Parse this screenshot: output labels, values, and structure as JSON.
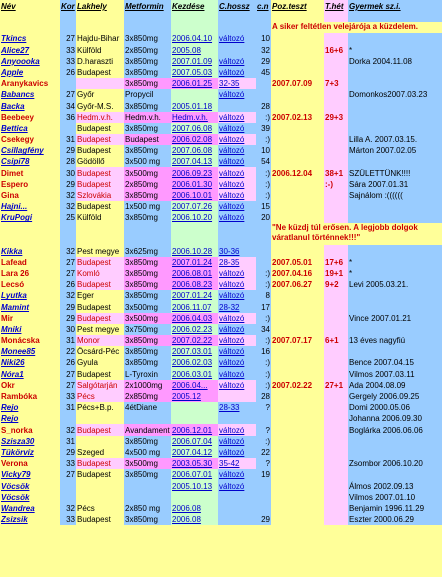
{
  "headers": [
    "Név",
    "Kor",
    "Lakhely",
    "Metformin",
    "Kezdése",
    "C.hossz",
    "c.n",
    "Poz.teszt",
    "T.hét",
    "Gyermek sz.i."
  ],
  "rows": [
    [
      "",
      "",
      "",
      "",
      "",
      "",
      "",
      "",
      "",
      ""
    ],
    [
      "Tkincs",
      "27",
      "Hajdu-Bihar",
      "3x850mg",
      "2006.04.10",
      "változó",
      "10",
      "",
      "",
      ""
    ],
    [
      "Alice27",
      "33",
      "Külföld",
      "2x850mg",
      "2005.08",
      "",
      "32",
      "",
      "16+6",
      "*"
    ],
    [
      "Anyoooka",
      "33",
      "D.haraszti",
      "3x850mg",
      "2007.01.09",
      "változó",
      "29",
      "",
      "",
      "Dorka 2004.11.08"
    ],
    [
      "Apple",
      "26",
      "Budapest",
      "3x850mg",
      "2007.05.03",
      "változó",
      "45",
      "",
      "",
      ""
    ],
    [
      "Aranykavics",
      "",
      "",
      "3x850mg",
      "2006.01.25",
      "32-35",
      "",
      "2007.07.09",
      "7+3",
      ""
    ],
    [
      "Babancs",
      "27",
      "Győr",
      "Propycil",
      "",
      "változó",
      "",
      "",
      "",
      "Domonkos2007.03.23"
    ],
    [
      "Backa",
      "34",
      "Győr-M.S.",
      "3x850mg",
      "2005.01.18",
      "",
      "28",
      "",
      "",
      ""
    ],
    [
      "Beebeey",
      "36",
      "Hedm.v.h.",
      "Hedm.v.h.",
      "Hedm.v.h.",
      "változó",
      ":)",
      "2007.02.13",
      "29+3",
      ""
    ],
    [
      "Bettica",
      "",
      "Budapest",
      "3x850mg",
      "2007.06.08",
      "változó",
      "39",
      "",
      "",
      ""
    ],
    [
      "Csekegy",
      "31",
      "Budapest",
      "Budapest",
      "2006.02.08",
      "változó",
      ":)",
      "",
      "",
      "Lilla A. 2007.03.15."
    ],
    [
      "Csillagfény",
      "29",
      "Budapest",
      "3x850mg",
      "2007.06.08",
      "változó",
      "10",
      "",
      "",
      "Márton 2007.02.05"
    ],
    [
      "Csipi78",
      "28",
      "Gödöllő",
      "3x500 mg",
      "2007.04.13",
      "változó",
      "54",
      "",
      "",
      ""
    ],
    [
      "Dimet",
      "30",
      "Budapest",
      "3x500mg",
      "2006.09.23",
      "változó",
      ":)",
      "2006.12.04",
      "38+1",
      "SZÜLETTÜNK!!!!"
    ],
    [
      "Espero",
      "29",
      "Budapest",
      "2x850mg",
      "2006.01.30",
      "változó",
      ":)",
      "",
      ":-)",
      "Sára 2007.01.31"
    ],
    [
      "Gina",
      "32",
      "Szlovákia",
      "3x850mg",
      "2006.10.01",
      "változó",
      ":)",
      "",
      "",
      "Sajnálom :(((((("
    ],
    [
      "Hajni...",
      "32",
      "Budapest",
      "1x500 mg",
      "2007.07.26",
      "változó",
      "15",
      "",
      "",
      ""
    ],
    [
      "KruPogi",
      "25",
      "Külföld",
      "3x850mg",
      "2006.10.20",
      "változó",
      "20",
      "",
      "",
      ""
    ]
  ],
  "rows2": [
    [
      "Kikka",
      "32",
      "Pest megye",
      "3x625mg",
      "2006.10.28",
      "30-36",
      "",
      "",
      "",
      ""
    ],
    [
      "Lafead",
      "27",
      "Budapest",
      "3x850mg",
      "2007.01.24",
      "28-35",
      "",
      "2007.05.01",
      "17+6",
      "*"
    ],
    [
      "Lara 26",
      "27",
      "Komló",
      "3x850mg",
      "2006.08.01",
      "változó",
      ":)",
      "2007.04.16",
      "19+1",
      "*"
    ],
    [
      "Lecsó",
      "26",
      "Budapest",
      "3x850mg",
      "2006.08.23",
      "változó",
      ":)",
      "2007.06.27",
      "9+2",
      "Levi 2005.03.21."
    ],
    [
      "Lyutka",
      "32",
      "Eger",
      "3x850mg",
      "2007.01.24",
      "változó",
      "8",
      "",
      "",
      ""
    ],
    [
      "Mamint",
      "29",
      "Budapest",
      "3x500mg",
      "2006.11.07",
      "28-32",
      "17",
      "",
      "",
      ""
    ],
    [
      "Mir",
      "29",
      "Budapest",
      "3x500mg",
      "2006.04.03",
      "változó",
      ":)",
      "",
      "",
      "Vince 2007.01.21"
    ],
    [
      "Mniki",
      "30",
      "Pest megye",
      "3x750mg",
      "2006.02.23",
      "változó",
      "34",
      "",
      "",
      ""
    ],
    [
      "Monácska",
      "31",
      "Monor",
      "3x850mg",
      "2007.02.22",
      "változó",
      ":)",
      "2007.07.17",
      "6+1",
      "13 éves nagyfiú"
    ],
    [
      "Monee85",
      "22",
      "Öcsárd-Péc",
      "3x850mg",
      "2007.03.01",
      "változó",
      "16",
      "",
      "",
      ""
    ],
    [
      "Niki26",
      "26",
      "Gyula",
      "3x850mg",
      "2006.02.03",
      "változó",
      ":)",
      "",
      "",
      "Bence 2007.04.15"
    ],
    [
      "Nóra1",
      "27",
      "Budapest",
      "L-Tyroxin",
      "2006.03.01",
      "változó",
      ":)",
      "",
      "",
      "Vilmos 2007.03.11"
    ],
    [
      "Okr",
      "27",
      "Salgótarján",
      "2x1000mg",
      "2006.04...",
      "változó",
      ":)",
      "2007.02.22",
      "27+1",
      "Ada 2004.08.09"
    ],
    [
      "Rambóka",
      "33",
      "Pécs",
      "2x850mg",
      "2005.12",
      "",
      "28",
      "",
      "",
      "Gergely 2006.09.25"
    ],
    [
      "Rejo",
      "31",
      "Pécs+B.p.",
      "4étDiane",
      "",
      "28-33",
      "?",
      "",
      "",
      "Domi 2000.05.06"
    ],
    [
      "Rejo",
      "",
      "",
      "",
      "",
      "",
      "",
      "",
      "",
      "Johanna 2006.09.30"
    ],
    [
      "S_norka",
      "32",
      "Budapest",
      "Avandament 2000 mg",
      "2006.12.01",
      "változó",
      "?",
      "",
      "",
      "Boglárka 2006.06.06"
    ],
    [
      "Szisza30",
      "31",
      "",
      "3x850mg",
      "2006.07.04",
      "változó",
      ":)",
      "",
      "",
      ""
    ],
    [
      "Tükörvíz",
      "29",
      "Szeged",
      "4x500 mg",
      "2007.04.12",
      "változó",
      "22",
      "",
      "",
      ""
    ],
    [
      "Verona",
      "33",
      "Budapest",
      "3x500mg",
      "2003.05.30",
      "35-42",
      "?",
      "",
      "",
      "Zsombor 2006.10.20"
    ],
    [
      "Vicky79",
      "27",
      "Budapest",
      "3x850mg",
      "2006.07.01",
      "változó",
      "19",
      "",
      "",
      ""
    ],
    [
      "Vöcsök",
      "",
      "",
      "",
      "2005.10.13",
      "változó",
      "",
      "",
      "",
      "Álmos 2002.09.13"
    ],
    [
      "Vöcsök",
      "",
      "",
      "",
      "",
      "",
      "",
      "",
      "",
      "Vilmos 2007.01.10"
    ],
    [
      "Wandrea",
      "32",
      "Pécs",
      "2x850 mg",
      "2006.08",
      "",
      "",
      "",
      "",
      "Benjamin 1996.11.29"
    ],
    [
      "Zsizsik",
      "33",
      "Budapest",
      "3x850mg",
      "2006.08",
      "",
      "29",
      "",
      "",
      "Eszter 2000.06.29"
    ]
  ],
  "notes": {
    "note1": "A siker feltétlen velejárója a küzdelem.",
    "note2": "\"Ne küzdj túl erősen. A legjobb dolgok váratlanul történnek!!!\""
  }
}
